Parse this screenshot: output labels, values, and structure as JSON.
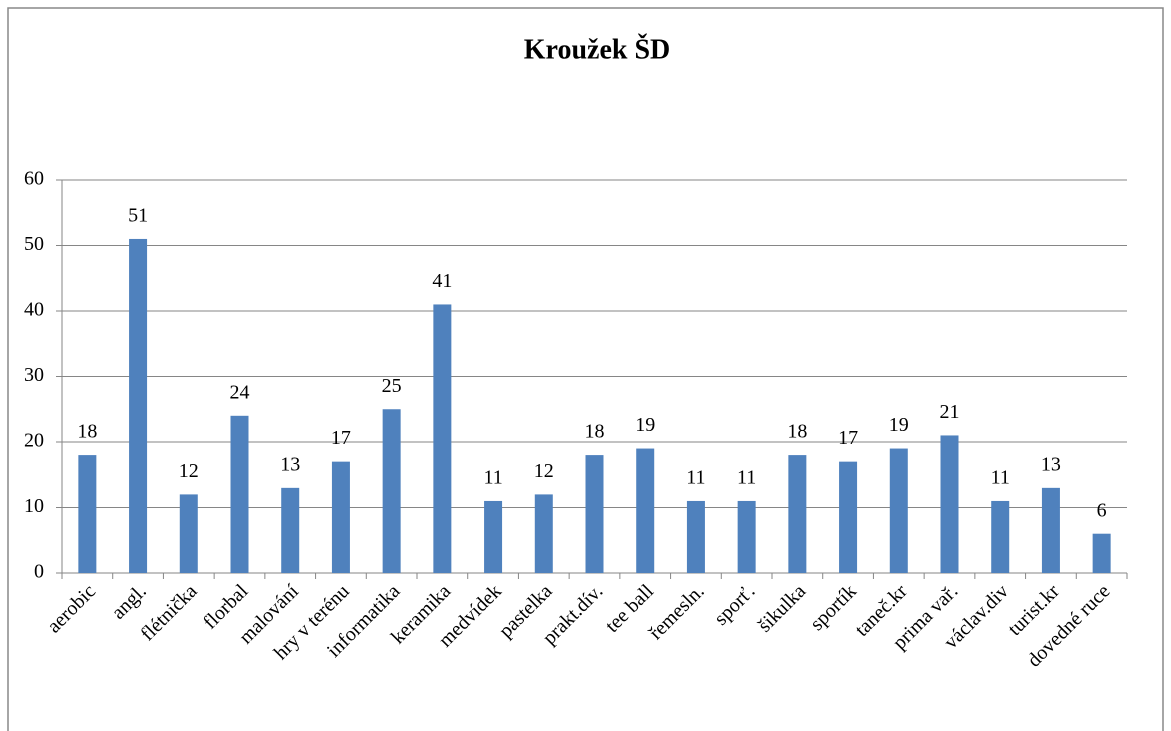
{
  "chart_data": {
    "type": "bar",
    "title": "Kroužek ŠD",
    "categories": [
      "aerobic",
      "angl.",
      "flétnička",
      "florbal",
      "malování",
      "hry v terénu",
      "informatika",
      "keramika",
      "medvídek",
      "pastelka",
      "prakt.dív.",
      "tee ball",
      "řemesln.",
      "sporť.",
      "šikulka",
      "sportík",
      "taneč.kr",
      "prima vař.",
      "václav.div",
      "turist.kr",
      "dovedné ruce"
    ],
    "values": [
      18,
      51,
      12,
      24,
      13,
      17,
      25,
      41,
      11,
      12,
      18,
      19,
      11,
      11,
      18,
      17,
      19,
      21,
      11,
      13,
      6
    ],
    "color": "#4f81bd",
    "ylim": [
      0,
      60
    ],
    "yticks": [
      0,
      10,
      20,
      30,
      40,
      50,
      60
    ],
    "grid": true
  }
}
